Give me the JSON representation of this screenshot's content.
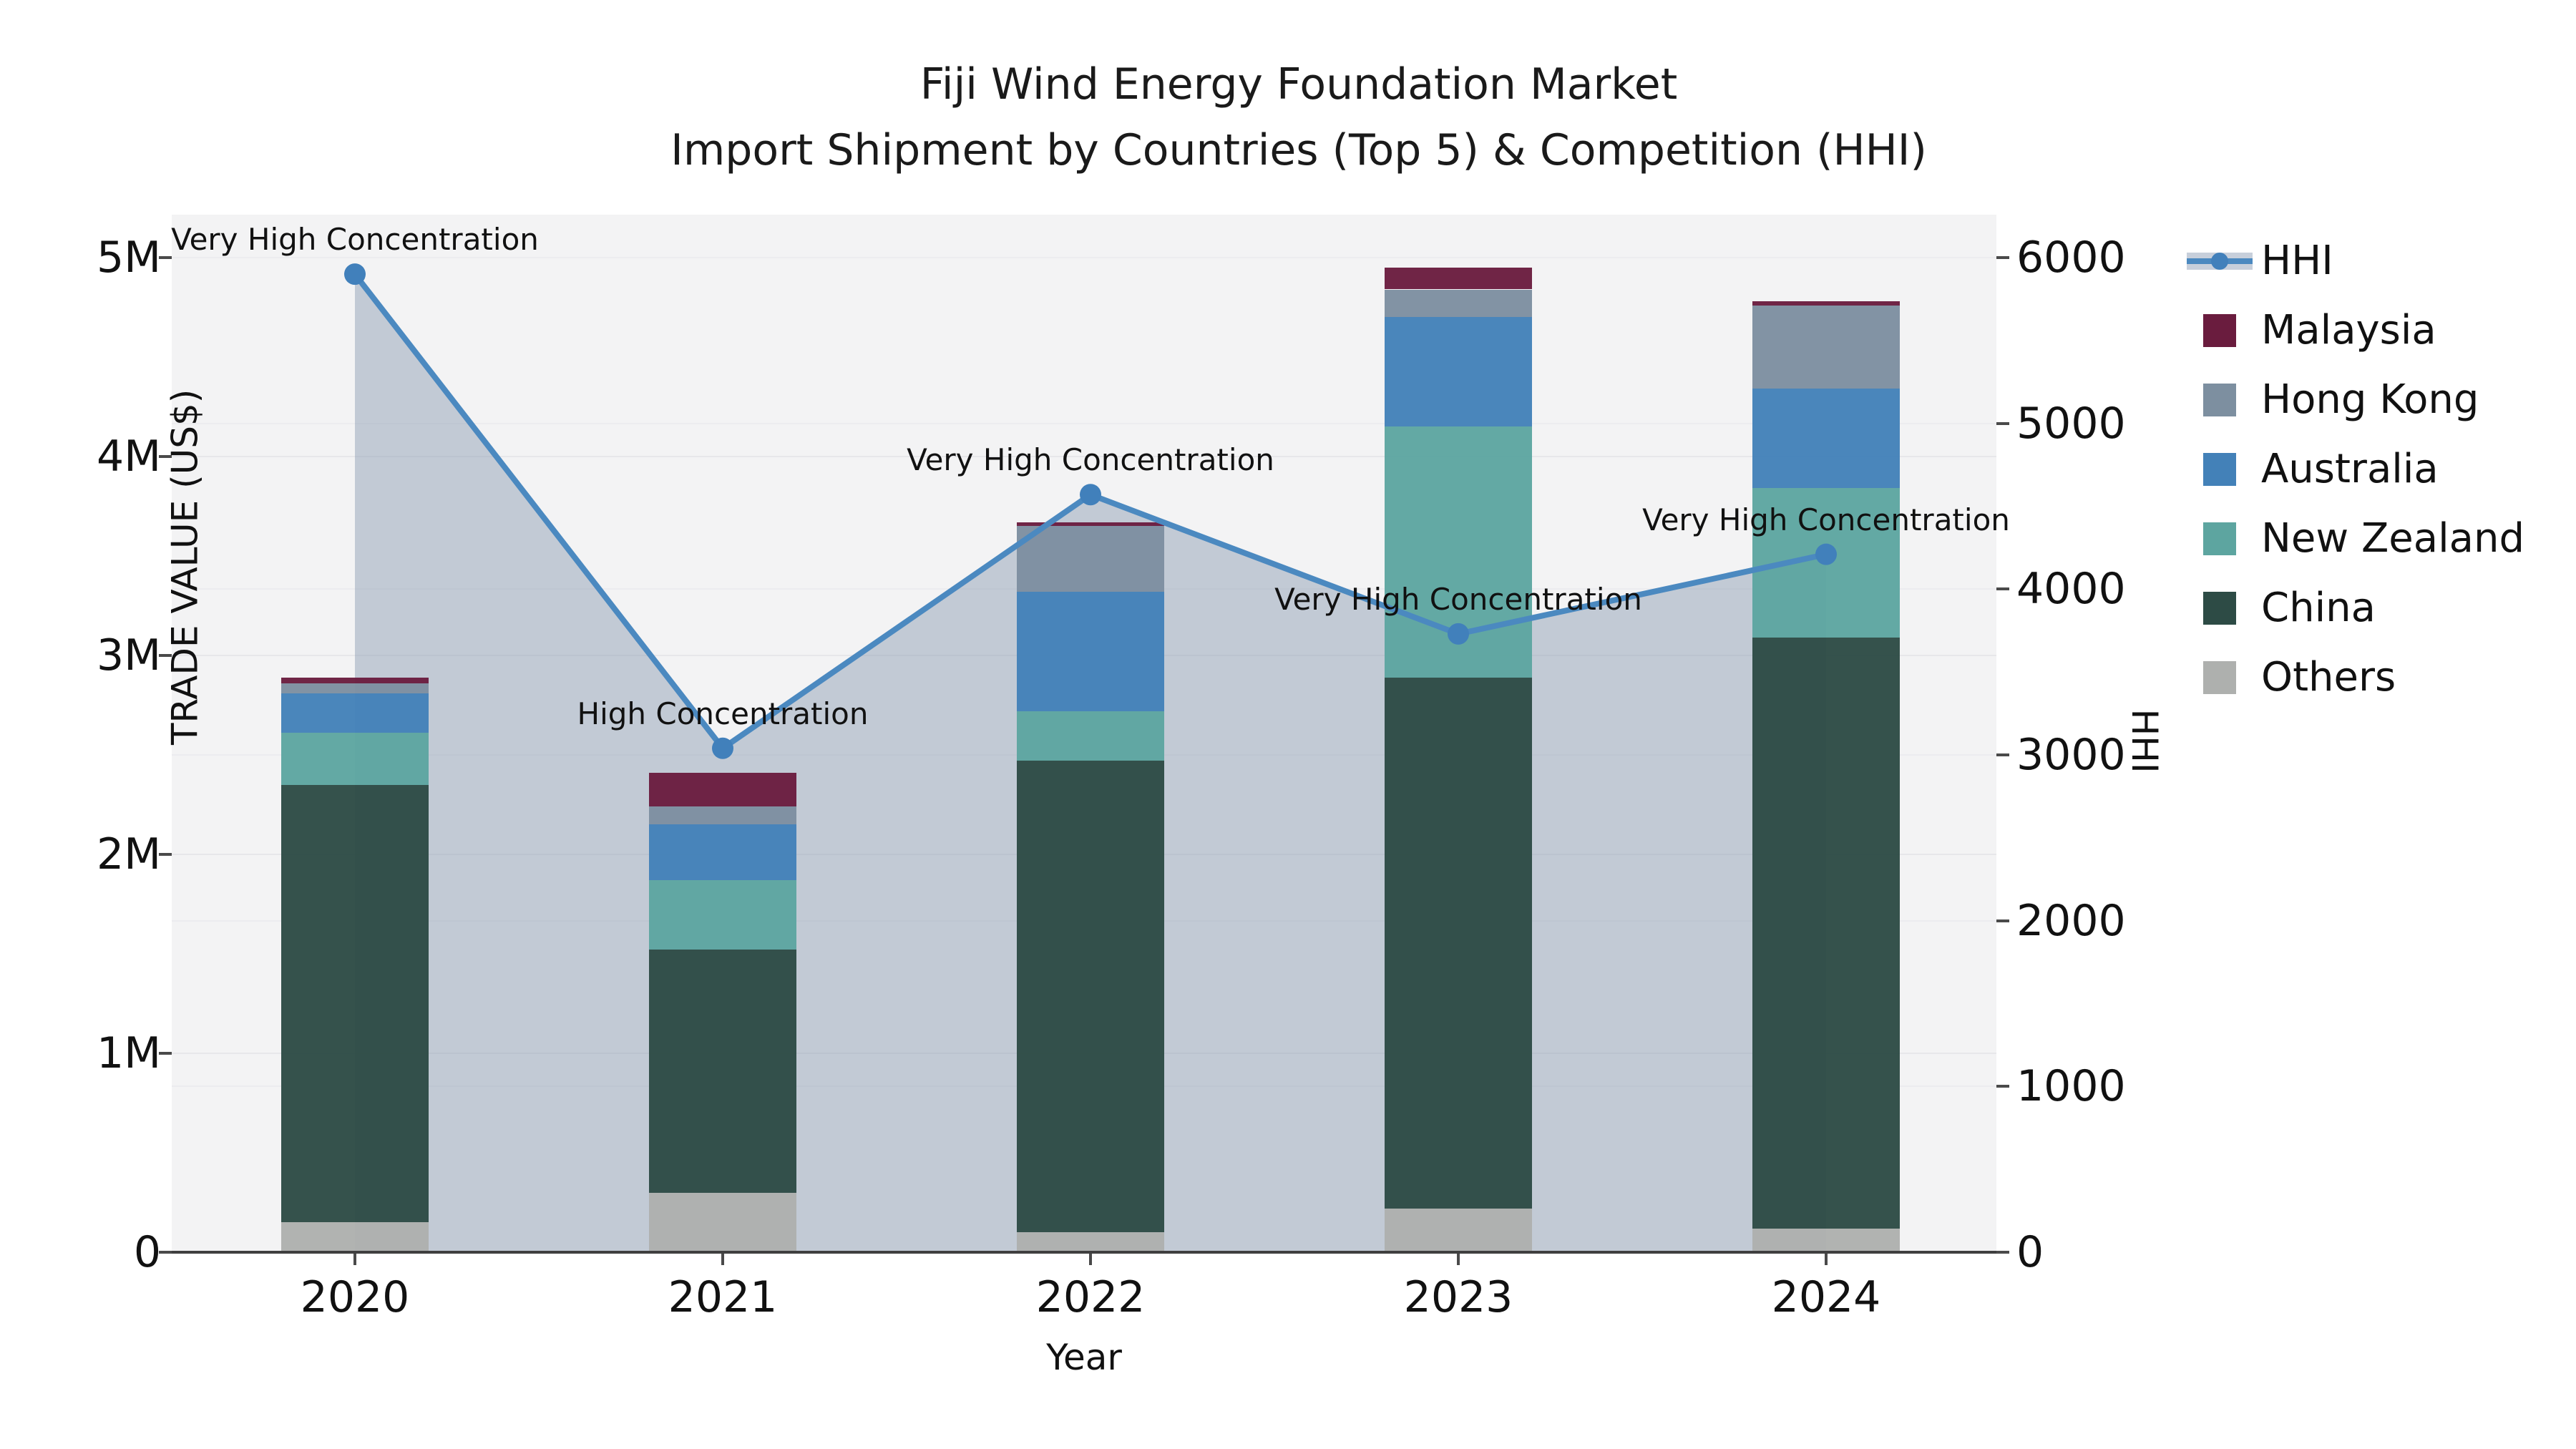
{
  "title": {
    "line1": "Fiji Wind Energy Foundation Market",
    "line2": "Import Shipment by Countries (Top 5) & Competition (HHI)"
  },
  "axes": {
    "left": {
      "label": "TRADE VALUE (US$)",
      "ticks": [
        "0",
        "1M",
        "2M",
        "3M",
        "4M",
        "5M"
      ]
    },
    "right": {
      "label": "HHI",
      "ticks": [
        "0",
        "1000",
        "2000",
        "3000",
        "4000",
        "5000",
        "6000"
      ]
    },
    "x": {
      "label": "Year",
      "ticks": [
        "2020",
        "2021",
        "2022",
        "2023",
        "2024"
      ]
    }
  },
  "chart_data": {
    "type": "bar",
    "subtype": "stacked-bars-with-line-overlay",
    "title": "Fiji Wind Energy Foundation Market Import Shipment by Countries (Top 5) & Competition (HHI)",
    "xlabel": "Year",
    "ylabel_left": "TRADE VALUE (US$)",
    "ylabel_right": "HHI",
    "ylim_left_musd": [
      0,
      5
    ],
    "ylim_right_hhi": [
      0,
      6000
    ],
    "grid": true,
    "legend_position": "right",
    "categories": [
      "2020",
      "2021",
      "2022",
      "2023",
      "2024"
    ],
    "series": [
      {
        "name": "Others",
        "color": "#aeb0ae",
        "values_musd": [
          0.15,
          0.3,
          0.1,
          0.22,
          0.12
        ]
      },
      {
        "name": "China",
        "color": "#2d4b45",
        "values_musd": [
          2.2,
          1.22,
          2.37,
          2.67,
          2.97
        ]
      },
      {
        "name": "New Zealand",
        "color": "#5da5a0",
        "values_musd": [
          0.26,
          0.35,
          0.25,
          1.26,
          0.75
        ]
      },
      {
        "name": "Australia",
        "color": "#4381b8",
        "values_musd": [
          0.2,
          0.28,
          0.6,
          0.55,
          0.5
        ]
      },
      {
        "name": "Hong Kong",
        "color": "#7d8fa0",
        "values_musd": [
          0.05,
          0.09,
          0.33,
          0.14,
          0.42
        ]
      },
      {
        "name": "Malaysia",
        "color": "#6a1c3e",
        "values_musd": [
          0.03,
          0.17,
          0.02,
          0.11,
          0.02
        ]
      }
    ],
    "totals_musd": [
      2.89,
      2.41,
      3.67,
      4.95,
      4.78
    ],
    "line": {
      "name": "HHI",
      "color": "#4b89c0",
      "marker_color": "#4180bb",
      "area_fill_color": "rgba(116,136,162,0.38)",
      "values": [
        5900,
        3040,
        4570,
        3730,
        4210
      ]
    },
    "annotations": [
      {
        "category": "2020",
        "text": "Very High Concentration"
      },
      {
        "category": "2021",
        "text": "High Concentration"
      },
      {
        "category": "2022",
        "text": "Very High Concentration"
      },
      {
        "category": "2023",
        "text": "Very High Concentration"
      },
      {
        "category": "2024",
        "text": "Very High Concentration"
      }
    ]
  },
  "legend": {
    "items": [
      {
        "label": "HHI",
        "type": "line",
        "color": "#4b89c0"
      },
      {
        "label": "Malaysia",
        "type": "patch",
        "color": "#6a1c3e"
      },
      {
        "label": "Hong Kong",
        "type": "patch",
        "color": "#7d8fa0"
      },
      {
        "label": "Australia",
        "type": "patch",
        "color": "#4381b8"
      },
      {
        "label": "New Zealand",
        "type": "patch",
        "color": "#5da5a0"
      },
      {
        "label": "China",
        "type": "patch",
        "color": "#2d4b45"
      },
      {
        "label": "Others",
        "type": "patch",
        "color": "#aeb0ae"
      }
    ]
  }
}
